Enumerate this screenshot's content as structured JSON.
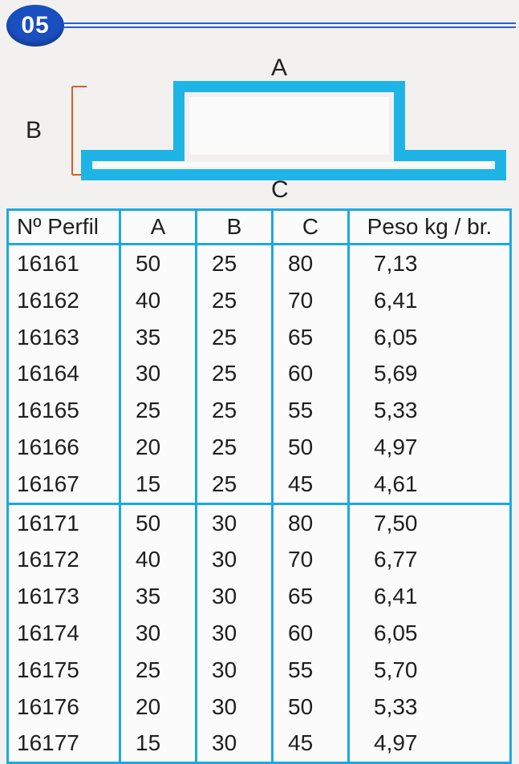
{
  "badge": {
    "text": "05"
  },
  "diagram": {
    "label_a": "A",
    "label_b": "B",
    "label_c": "C",
    "profile_color": "#1fb4e6",
    "profile_inner": "#ffffff",
    "bracket_color": "#d1602a"
  },
  "colors": {
    "border": "#1ca9e0",
    "text": "#1e1e1e",
    "badge_bg": "#1a4fc0",
    "rule": "#2b5fd1",
    "page_bg": "#f2f1ef"
  },
  "table": {
    "columns": {
      "perfil": "Nº Perfil",
      "a": "A",
      "b": "B",
      "c": "C",
      "peso": "Peso kg / br."
    },
    "groups": [
      {
        "rows": [
          {
            "perfil": "16161",
            "a": "50",
            "b": "25",
            "c": "80",
            "peso": "7,13"
          },
          {
            "perfil": "16162",
            "a": "40",
            "b": "25",
            "c": "70",
            "peso": "6,41"
          },
          {
            "perfil": "16163",
            "a": "35",
            "b": "25",
            "c": "65",
            "peso": "6,05"
          },
          {
            "perfil": "16164",
            "a": "30",
            "b": "25",
            "c": "60",
            "peso": "5,69"
          },
          {
            "perfil": "16165",
            "a": "25",
            "b": "25",
            "c": "55",
            "peso": "5,33"
          },
          {
            "perfil": "16166",
            "a": "20",
            "b": "25",
            "c": "50",
            "peso": "4,97"
          },
          {
            "perfil": "16167",
            "a": "15",
            "b": "25",
            "c": "45",
            "peso": "4,61"
          }
        ]
      },
      {
        "rows": [
          {
            "perfil": "16171",
            "a": "50",
            "b": "30",
            "c": "80",
            "peso": "7,50"
          },
          {
            "perfil": "16172",
            "a": "40",
            "b": "30",
            "c": "70",
            "peso": "6,77"
          },
          {
            "perfil": "16173",
            "a": "35",
            "b": "30",
            "c": "65",
            "peso": "6,41"
          },
          {
            "perfil": "16174",
            "a": "30",
            "b": "30",
            "c": "60",
            "peso": "6,05"
          },
          {
            "perfil": "16175",
            "a": "25",
            "b": "30",
            "c": "55",
            "peso": "5,70"
          },
          {
            "perfil": "16176",
            "a": "20",
            "b": "30",
            "c": "50",
            "peso": "5,33"
          },
          {
            "perfil": "16177",
            "a": "15",
            "b": "30",
            "c": "45",
            "peso": "4,97"
          }
        ]
      }
    ]
  }
}
